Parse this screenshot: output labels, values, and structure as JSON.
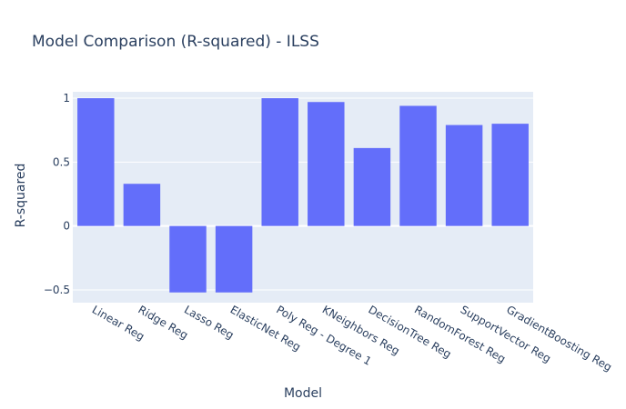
{
  "chart_data": {
    "type": "bar",
    "title": "Model Comparison (R-squared) - ILSS",
    "xlabel": "Model",
    "ylabel": "R-squared",
    "categories": [
      "Linear Reg",
      "Ridge Reg",
      "Lasso Reg",
      "ElasticNet Reg",
      "Poly Reg - Degree 1",
      "KNeighbors Reg",
      "DecisionTree Reg",
      "RandomForest Reg",
      "SupportVector Reg",
      "GradientBoosting Reg"
    ],
    "values": [
      1.0,
      0.33,
      -0.52,
      -0.52,
      1.0,
      0.97,
      0.61,
      0.94,
      0.79,
      0.8
    ],
    "ylim": [
      -0.6,
      1.05
    ],
    "yticks": [
      -0.5,
      0,
      0.5,
      1
    ],
    "ytick_labels": [
      "−0.5",
      "0",
      "0.5",
      "1"
    ],
    "grid": true,
    "colors": {
      "bar": "#636efa",
      "plot_bg": "#e5ecf6",
      "grid": "#ffffff",
      "text": "#2a3f5f"
    }
  }
}
